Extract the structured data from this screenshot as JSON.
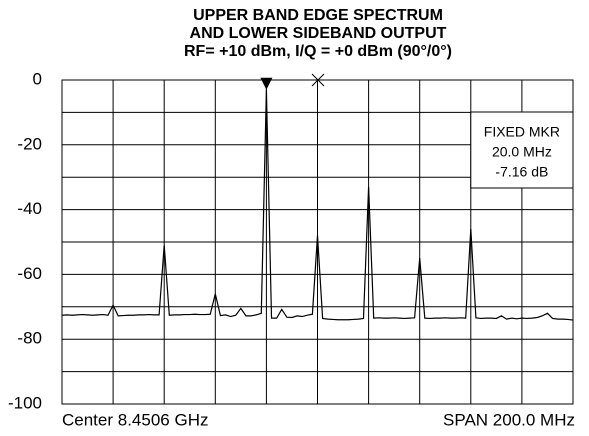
{
  "chart_data": {
    "type": "line",
    "title": [
      "UPPER BAND EDGE SPECTRUM",
      "AND LOWER SIDEBAND OUTPUT",
      "RF= +10 dBm, I/Q = +0 dBm (90°/0°)"
    ],
    "x_left_label": "Center 8.4506 GHz",
    "x_right_label": "SPAN 200.0 MHz",
    "annotation": [
      "FIXED MKR",
      "20.0 MHz",
      "-7.16 dB"
    ],
    "ylim": [
      -100,
      0
    ],
    "yticks": [
      0,
      -20,
      -40,
      -60,
      -80,
      -100
    ],
    "grid": true,
    "color": "#000000",
    "values": [
      -72.6,
      -72.5,
      -72.6,
      -72.5,
      -72.4,
      -72.5,
      -72.6,
      -72.5,
      -72.4,
      -72.6,
      -69.5,
      -72.8,
      -72.7,
      -72.6,
      -72.6,
      -72.5,
      -72.5,
      -72.4,
      -72.5,
      -72.5,
      -51,
      -72.6,
      -72.5,
      -72.5,
      -72.4,
      -72.4,
      -72.3,
      -72.4,
      -72.4,
      -72.3,
      -66,
      -72.7,
      -72.5,
      -73,
      -72.6,
      -70.5,
      -72.8,
      -72.8,
      -72.5,
      -72,
      -3,
      -73.5,
      -73.5,
      -70.8,
      -73.2,
      -73.3,
      -72.8,
      -73,
      -72.6,
      -72.3,
      -48,
      -73.6,
      -73.8,
      -73.9,
      -74,
      -74,
      -74,
      -73.9,
      -73.8,
      -73.6,
      -33,
      -73.5,
      -73.4,
      -73.5,
      -73.5,
      -73.4,
      -73.5,
      -73.6,
      -73.5,
      -73.4,
      -55,
      -73.5,
      -73.6,
      -73.5,
      -73.5,
      -73.4,
      -73.5,
      -73.5,
      -73.4,
      -73.5,
      -46,
      -73.4,
      -73.6,
      -73.5,
      -73.5,
      -73.6,
      -72.8,
      -73.8,
      -73.5,
      -73.7,
      -73.5,
      -73.6,
      -73.5,
      -73.3,
      -72.8,
      -72,
      -73.6,
      -73.8,
      -73.8,
      -73.9,
      -74.1
    ]
  }
}
